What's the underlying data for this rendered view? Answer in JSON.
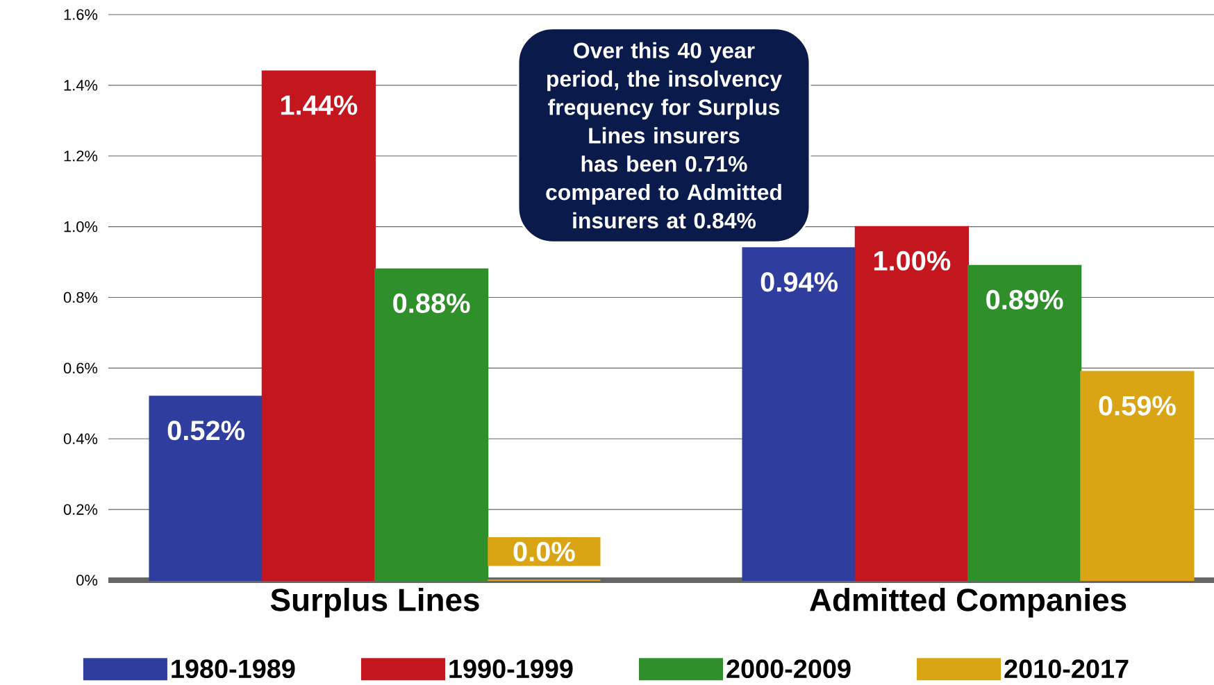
{
  "chart_data": {
    "type": "bar",
    "categories": [
      "Surplus Lines",
      "Admitted Companies"
    ],
    "series": [
      {
        "name": "1980-1989",
        "color": "#2e3d9e",
        "values": [
          0.52,
          0.94
        ],
        "value_labels": [
          "0.52%",
          "0.94%"
        ]
      },
      {
        "name": "1990-1999",
        "color": "#c3161f",
        "values": [
          1.44,
          1.0
        ],
        "value_labels": [
          "1.44%",
          "1.00%"
        ]
      },
      {
        "name": "2000-2009",
        "color": "#2f8f2a",
        "values": [
          0.88,
          0.89
        ],
        "value_labels": [
          "0.88%",
          "0.89%"
        ]
      },
      {
        "name": "2010-2017",
        "color": "#d9a514",
        "values": [
          0,
          0.59
        ],
        "value_labels": [
          "0.0%",
          "0.59%"
        ]
      }
    ],
    "ylim": [
      0,
      1.6
    ],
    "yticks": [
      {
        "value": 0,
        "label": "0%"
      },
      {
        "value": 0.2,
        "label": "0.2%"
      },
      {
        "value": 0.4,
        "label": "0.4%"
      },
      {
        "value": 0.6,
        "label": "0.6%"
      },
      {
        "value": 0.8,
        "label": "0.8%"
      },
      {
        "value": 1.0,
        "label": "1.0%"
      },
      {
        "value": 1.2,
        "label": "1.2%"
      },
      {
        "value": 1.4,
        "label": "1.4%"
      },
      {
        "value": 1.6,
        "label": "1.6%"
      }
    ],
    "grid": "y",
    "legend": "bottom",
    "annotations": [
      "Over this 40 year period, the insolvency frequency for Surplus Lines insurers has been 0.71% compared to Admitted insurers at 0.84%"
    ]
  }
}
